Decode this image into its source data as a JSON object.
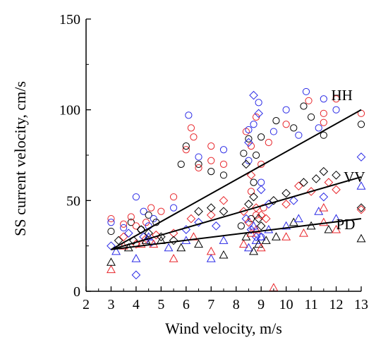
{
  "chart_data": {
    "type": "scatter",
    "xlabel": "Wind velocity, m/s",
    "ylabel": "SS current velocity, cm/s",
    "xlim": [
      2,
      13
    ],
    "ylim": [
      0,
      150
    ],
    "xticks": [
      "2",
      "3",
      "4",
      "5",
      "6",
      "7",
      "8",
      "9",
      "10",
      "11",
      "12",
      "13"
    ],
    "yticks": [
      "0",
      "50",
      "100",
      "150"
    ],
    "grid": false,
    "colors": [
      "#000000",
      "#e8252a",
      "#2a2ae6"
    ],
    "markers": [
      "circle",
      "diamond",
      "triangle"
    ],
    "series": [
      {
        "marker": "circle",
        "points": [
          {
            "c": 0,
            "x": 3,
            "y": 33
          },
          {
            "c": 1,
            "x": 3,
            "y": 40
          },
          {
            "c": 2,
            "x": 3,
            "y": 38
          },
          {
            "c": 1,
            "x": 3.5,
            "y": 37
          },
          {
            "c": 2,
            "x": 3.5,
            "y": 35
          },
          {
            "c": 0,
            "x": 3.8,
            "y": 38
          },
          {
            "c": 1,
            "x": 3.8,
            "y": 41
          },
          {
            "c": 2,
            "x": 4,
            "y": 52
          },
          {
            "c": 1,
            "x": 4,
            "y": 36
          },
          {
            "c": 0,
            "x": 4.2,
            "y": 34
          },
          {
            "c": 2,
            "x": 4.3,
            "y": 44
          },
          {
            "c": 1,
            "x": 4.4,
            "y": 38
          },
          {
            "c": 0,
            "x": 4.5,
            "y": 42
          },
          {
            "c": 2,
            "x": 4.5,
            "y": 36
          },
          {
            "c": 1,
            "x": 4.6,
            "y": 46
          },
          {
            "c": 2,
            "x": 4.7,
            "y": 40
          },
          {
            "c": 0,
            "x": 4.8,
            "y": 38
          },
          {
            "c": 1,
            "x": 5,
            "y": 44
          },
          {
            "c": 2,
            "x": 5.5,
            "y": 46
          },
          {
            "c": 1,
            "x": 5.5,
            "y": 52
          },
          {
            "c": 0,
            "x": 5.8,
            "y": 70
          },
          {
            "c": 1,
            "x": 6,
            "y": 78
          },
          {
            "c": 0,
            "x": 6,
            "y": 80
          },
          {
            "c": 2,
            "x": 6.1,
            "y": 97
          },
          {
            "c": 1,
            "x": 6.2,
            "y": 90
          },
          {
            "c": 1,
            "x": 6.3,
            "y": 85
          },
          {
            "c": 0,
            "x": 6.5,
            "y": 70
          },
          {
            "c": 1,
            "x": 6.5,
            "y": 68
          },
          {
            "c": 2,
            "x": 6.5,
            "y": 74
          },
          {
            "c": 0,
            "x": 7,
            "y": 66
          },
          {
            "c": 1,
            "x": 7,
            "y": 80
          },
          {
            "c": 1,
            "x": 7,
            "y": 72
          },
          {
            "c": 0,
            "x": 7.5,
            "y": 64
          },
          {
            "c": 1,
            "x": 7.5,
            "y": 70
          },
          {
            "c": 2,
            "x": 7.5,
            "y": 78
          },
          {
            "c": 0,
            "x": 8.3,
            "y": 76
          },
          {
            "c": 1,
            "x": 8.4,
            "y": 88
          },
          {
            "c": 2,
            "x": 8.5,
            "y": 89
          },
          {
            "c": 0,
            "x": 8.5,
            "y": 84
          },
          {
            "c": 1,
            "x": 8.6,
            "y": 80
          },
          {
            "c": 2,
            "x": 8.7,
            "y": 92
          },
          {
            "c": 0,
            "x": 8.8,
            "y": 75
          },
          {
            "c": 1,
            "x": 8.8,
            "y": 96
          },
          {
            "c": 2,
            "x": 8.9,
            "y": 104
          },
          {
            "c": 0,
            "x": 9,
            "y": 85
          },
          {
            "c": 1,
            "x": 9,
            "y": 70
          },
          {
            "c": 2,
            "x": 9,
            "y": 60
          },
          {
            "c": 0,
            "x": 8.7,
            "y": 60
          },
          {
            "c": 1,
            "x": 8.6,
            "y": 55
          },
          {
            "c": 2,
            "x": 8.5,
            "y": 72
          },
          {
            "c": 1,
            "x": 9.3,
            "y": 82
          },
          {
            "c": 2,
            "x": 9.5,
            "y": 88
          },
          {
            "c": 0,
            "x": 9.6,
            "y": 94
          },
          {
            "c": 2,
            "x": 10,
            "y": 100
          },
          {
            "c": 1,
            "x": 10,
            "y": 92
          },
          {
            "c": 0,
            "x": 10.3,
            "y": 90
          },
          {
            "c": 2,
            "x": 10.5,
            "y": 86
          },
          {
            "c": 0,
            "x": 10.7,
            "y": 102
          },
          {
            "c": 2,
            "x": 10.8,
            "y": 110
          },
          {
            "c": 1,
            "x": 10.9,
            "y": 105
          },
          {
            "c": 0,
            "x": 11,
            "y": 96
          },
          {
            "c": 2,
            "x": 11.3,
            "y": 90
          },
          {
            "c": 1,
            "x": 11.5,
            "y": 98
          },
          {
            "c": 1,
            "x": 11.5,
            "y": 93
          },
          {
            "c": 2,
            "x": 11.5,
            "y": 106
          },
          {
            "c": 0,
            "x": 11.5,
            "y": 86
          },
          {
            "c": 2,
            "x": 12,
            "y": 100
          },
          {
            "c": 1,
            "x": 12,
            "y": 106
          },
          {
            "c": 0,
            "x": 13,
            "y": 92
          },
          {
            "c": 1,
            "x": 13,
            "y": 98
          },
          {
            "c": 0,
            "x": 8.2,
            "y": 36
          },
          {
            "c": 1,
            "x": 8.8,
            "y": 42
          },
          {
            "c": 2,
            "x": 9,
            "y": 30
          },
          {
            "c": 1,
            "x": 9.1,
            "y": 46
          },
          {
            "c": 0,
            "x": 8.6,
            "y": 40
          }
        ]
      },
      {
        "marker": "diamond",
        "points": [
          {
            "c": 2,
            "x": 3,
            "y": 25
          },
          {
            "c": 0,
            "x": 3.3,
            "y": 28
          },
          {
            "c": 1,
            "x": 3.5,
            "y": 30
          },
          {
            "c": 2,
            "x": 3.7,
            "y": 32
          },
          {
            "c": 0,
            "x": 3.9,
            "y": 28
          },
          {
            "c": 2,
            "x": 4,
            "y": 9
          },
          {
            "c": 1,
            "x": 4,
            "y": 26
          },
          {
            "c": 0,
            "x": 4.2,
            "y": 34
          },
          {
            "c": 2,
            "x": 4.3,
            "y": 30
          },
          {
            "c": 1,
            "x": 4.4,
            "y": 29
          },
          {
            "c": 0,
            "x": 4.5,
            "y": 32
          },
          {
            "c": 2,
            "x": 4.6,
            "y": 27
          },
          {
            "c": 1,
            "x": 4.8,
            "y": 31
          },
          {
            "c": 0,
            "x": 5,
            "y": 30
          },
          {
            "c": 1,
            "x": 5.5,
            "y": 32
          },
          {
            "c": 0,
            "x": 5.5,
            "y": 28
          },
          {
            "c": 2,
            "x": 6,
            "y": 34
          },
          {
            "c": 1,
            "x": 6.2,
            "y": 40
          },
          {
            "c": 0,
            "x": 6.5,
            "y": 44
          },
          {
            "c": 2,
            "x": 6.5,
            "y": 38
          },
          {
            "c": 1,
            "x": 7,
            "y": 42
          },
          {
            "c": 0,
            "x": 7,
            "y": 46
          },
          {
            "c": 2,
            "x": 7.2,
            "y": 36
          },
          {
            "c": 1,
            "x": 7.5,
            "y": 50
          },
          {
            "c": 0,
            "x": 7.5,
            "y": 44
          },
          {
            "c": 1,
            "x": 8.3,
            "y": 44
          },
          {
            "c": 2,
            "x": 8.4,
            "y": 40
          },
          {
            "c": 0,
            "x": 8.5,
            "y": 48
          },
          {
            "c": 1,
            "x": 8.5,
            "y": 38
          },
          {
            "c": 2,
            "x": 8.6,
            "y": 34
          },
          {
            "c": 0,
            "x": 8.7,
            "y": 52
          },
          {
            "c": 1,
            "x": 8.8,
            "y": 46
          },
          {
            "c": 2,
            "x": 8.8,
            "y": 30
          },
          {
            "c": 0,
            "x": 8.9,
            "y": 40
          },
          {
            "c": 1,
            "x": 9,
            "y": 42
          },
          {
            "c": 2,
            "x": 9,
            "y": 56
          },
          {
            "c": 0,
            "x": 9,
            "y": 36
          },
          {
            "c": 1,
            "x": 9.2,
            "y": 40
          },
          {
            "c": 2,
            "x": 9.3,
            "y": 48
          },
          {
            "c": 0,
            "x": 9.5,
            "y": 50
          },
          {
            "c": 1,
            "x": 10,
            "y": 48
          },
          {
            "c": 0,
            "x": 10,
            "y": 54
          },
          {
            "c": 2,
            "x": 10.3,
            "y": 50
          },
          {
            "c": 1,
            "x": 10.5,
            "y": 58
          },
          {
            "c": 0,
            "x": 10.7,
            "y": 60
          },
          {
            "c": 1,
            "x": 11,
            "y": 55
          },
          {
            "c": 0,
            "x": 11.2,
            "y": 62
          },
          {
            "c": 2,
            "x": 11.5,
            "y": 52
          },
          {
            "c": 0,
            "x": 11.5,
            "y": 66
          },
          {
            "c": 1,
            "x": 11.7,
            "y": 60
          },
          {
            "c": 0,
            "x": 12,
            "y": 64
          },
          {
            "c": 1,
            "x": 12,
            "y": 56
          },
          {
            "c": 2,
            "x": 13,
            "y": 74
          },
          {
            "c": 0,
            "x": 13,
            "y": 46
          },
          {
            "c": 1,
            "x": 13,
            "y": 45
          },
          {
            "c": 2,
            "x": 8.7,
            "y": 108
          },
          {
            "c": 2,
            "x": 8.9,
            "y": 98
          },
          {
            "c": 2,
            "x": 8.5,
            "y": 82
          },
          {
            "c": 1,
            "x": 8.6,
            "y": 64
          },
          {
            "c": 0,
            "x": 8.4,
            "y": 70
          }
        ]
      },
      {
        "marker": "triangle",
        "points": [
          {
            "c": 1,
            "x": 3,
            "y": 12
          },
          {
            "c": 0,
            "x": 3,
            "y": 16
          },
          {
            "c": 2,
            "x": 3.2,
            "y": 22
          },
          {
            "c": 1,
            "x": 3.5,
            "y": 25
          },
          {
            "c": 0,
            "x": 3.7,
            "y": 24
          },
          {
            "c": 2,
            "x": 4,
            "y": 18
          },
          {
            "c": 1,
            "x": 4.2,
            "y": 26
          },
          {
            "c": 0,
            "x": 4.4,
            "y": 28
          },
          {
            "c": 2,
            "x": 4.5,
            "y": 30
          },
          {
            "c": 1,
            "x": 4.7,
            "y": 26
          },
          {
            "c": 0,
            "x": 5,
            "y": 28
          },
          {
            "c": 2,
            "x": 5.3,
            "y": 24
          },
          {
            "c": 1,
            "x": 5.5,
            "y": 18
          },
          {
            "c": 0,
            "x": 5.8,
            "y": 24
          },
          {
            "c": 2,
            "x": 6,
            "y": 28
          },
          {
            "c": 1,
            "x": 6.3,
            "y": 30
          },
          {
            "c": 0,
            "x": 6.5,
            "y": 26
          },
          {
            "c": 2,
            "x": 7,
            "y": 18
          },
          {
            "c": 1,
            "x": 7,
            "y": 22
          },
          {
            "c": 0,
            "x": 7.5,
            "y": 20
          },
          {
            "c": 2,
            "x": 7.5,
            "y": 28
          },
          {
            "c": 1,
            "x": 8.3,
            "y": 26
          },
          {
            "c": 0,
            "x": 8.4,
            "y": 30
          },
          {
            "c": 2,
            "x": 8.5,
            "y": 24
          },
          {
            "c": 1,
            "x": 8.6,
            "y": 32
          },
          {
            "c": 0,
            "x": 8.7,
            "y": 22
          },
          {
            "c": 2,
            "x": 8.8,
            "y": 28
          },
          {
            "c": 1,
            "x": 8.8,
            "y": 34
          },
          {
            "c": 0,
            "x": 8.9,
            "y": 26
          },
          {
            "c": 2,
            "x": 9,
            "y": 30
          },
          {
            "c": 1,
            "x": 9,
            "y": 24
          },
          {
            "c": 0,
            "x": 9.2,
            "y": 28
          },
          {
            "c": 2,
            "x": 9.3,
            "y": 34
          },
          {
            "c": 1,
            "x": 9.5,
            "y": 2
          },
          {
            "c": 0,
            "x": 9.6,
            "y": 30
          },
          {
            "c": 2,
            "x": 10,
            "y": 36
          },
          {
            "c": 1,
            "x": 10,
            "y": 30
          },
          {
            "c": 0,
            "x": 10.3,
            "y": 38
          },
          {
            "c": 2,
            "x": 10.5,
            "y": 40
          },
          {
            "c": 1,
            "x": 10.7,
            "y": 32
          },
          {
            "c": 0,
            "x": 11,
            "y": 36
          },
          {
            "c": 2,
            "x": 11.3,
            "y": 44
          },
          {
            "c": 1,
            "x": 11.5,
            "y": 38
          },
          {
            "c": 0,
            "x": 11.7,
            "y": 34
          },
          {
            "c": 2,
            "x": 12,
            "y": 40
          },
          {
            "c": 1,
            "x": 12,
            "y": 34
          },
          {
            "c": 2,
            "x": 13,
            "y": 58
          },
          {
            "c": 0,
            "x": 13,
            "y": 29
          },
          {
            "c": 1,
            "x": 11.5,
            "y": 46
          },
          {
            "c": 2,
            "x": 8.7,
            "y": 36
          }
        ]
      }
    ],
    "regression_lines": [
      {
        "label": "HH",
        "x": [
          3,
          13
        ],
        "y": [
          23,
          100
        ]
      },
      {
        "label": "VV",
        "x": [
          3,
          13
        ],
        "y": [
          23,
          63
        ]
      },
      {
        "label": "PD",
        "x": [
          3,
          13
        ],
        "y": [
          23,
          40
        ]
      }
    ]
  }
}
